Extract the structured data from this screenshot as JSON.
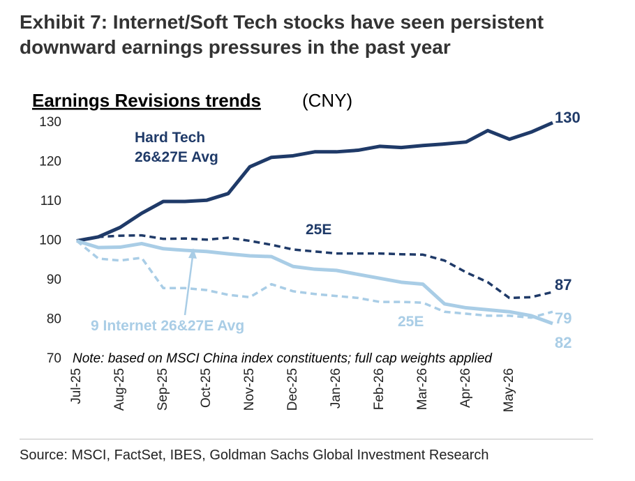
{
  "header": {
    "title": "Exhibit 7: Internet/Soft Tech stocks have seen persistent downward earnings pressures in the past year"
  },
  "chart_data": {
    "type": "line",
    "title": "Earnings Revisions trends",
    "subtitle": "(CNY)",
    "categories": [
      "Jul-25",
      null,
      "Aug-25",
      null,
      "Sep-25",
      null,
      "Oct-25",
      null,
      "Nov-25",
      null,
      "Dec-25",
      null,
      "Jan-26",
      null,
      "Feb-26",
      null,
      "Mar-26",
      null,
      "Apr-26",
      null,
      "May-26",
      null,
      null
    ],
    "ylim": [
      70,
      130
    ],
    "yticks": [
      70,
      80,
      90,
      100,
      110,
      120,
      130
    ],
    "grid": false,
    "series": [
      {
        "name": "Hard Tech 26&27E Avg",
        "color": "#1f3a68",
        "dash": false,
        "values": [
          100,
          101,
          103.4,
          107,
          110,
          110,
          110.3,
          112,
          118.8,
          121.2,
          121.6,
          122.6,
          122.6,
          123,
          124,
          123.7,
          124.2,
          124.6,
          125.1,
          128,
          125.8,
          127.6,
          130
        ]
      },
      {
        "name": "25E",
        "color": "#1f3a68",
        "dash": true,
        "values": [
          100,
          101,
          101.3,
          101.4,
          100.5,
          100.6,
          100.3,
          100.8,
          100,
          99,
          97.8,
          97.3,
          96.8,
          96.8,
          96.8,
          96.6,
          96.5,
          95,
          92,
          89.5,
          85.5,
          85.7,
          87
        ]
      },
      {
        "name": "9 Internet 26&27E Avg",
        "color": "#a9cde6",
        "dash": false,
        "values": [
          100,
          98.3,
          98.4,
          99.3,
          98,
          97.6,
          97.3,
          96.7,
          96.2,
          96,
          93.5,
          92.8,
          92.5,
          91.5,
          90.5,
          89.5,
          89,
          84,
          83,
          82.5,
          82,
          81,
          79
        ]
      },
      {
        "name": "25E",
        "color": "#a9cde6",
        "dash": true,
        "values": [
          100,
          95.5,
          95,
          95.7,
          88,
          88,
          87.5,
          86.3,
          85.7,
          89,
          87.2,
          86.5,
          86,
          85.5,
          84.5,
          84.5,
          84.3,
          82,
          81.5,
          81,
          81,
          80.5,
          82
        ]
      }
    ],
    "note": "Note: based on MSCI China index constituents; full cap weights applied"
  },
  "source": "Source: MSCI, FactSet, IBES, Goldman Sachs Global Investment Research"
}
